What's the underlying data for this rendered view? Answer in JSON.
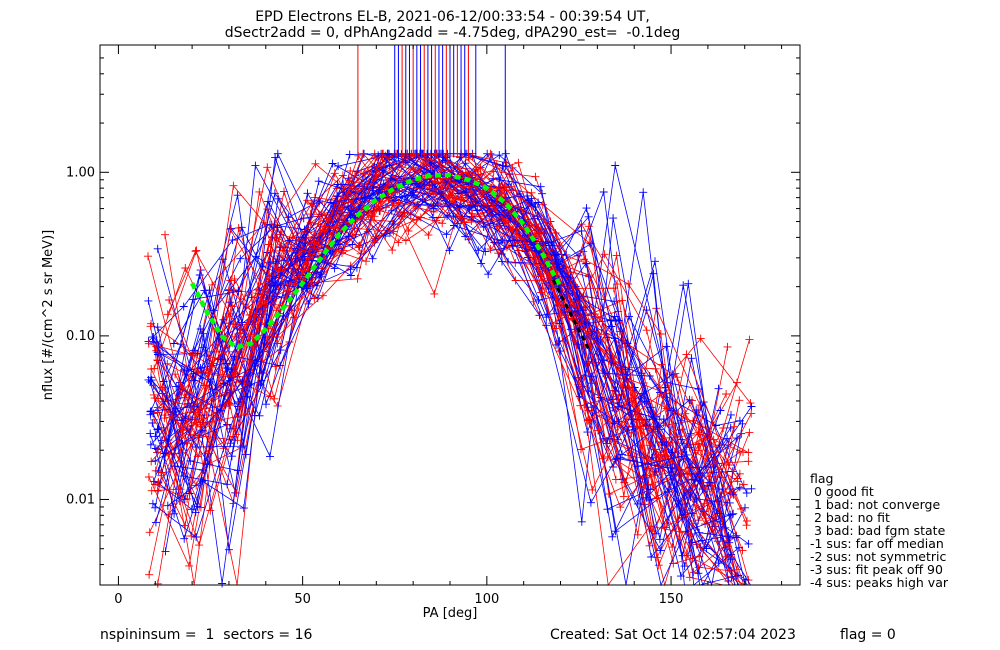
{
  "chart_data": {
    "type": "scatter",
    "title_line1": "EPD Electrons EL-B, 2021-06-12/00:33:54 - 00:39:54 UT,",
    "title_line2": "dSectr2add = 0, dPhAng2add = -4.75deg, dPA290_est=  -0.1deg",
    "xlabel": "PA [deg]",
    "ylabel": "nflux [#/(cm^2 s sr MeV)]",
    "xlim": [
      -5,
      185
    ],
    "ylim": [
      0.003,
      6.0
    ],
    "yscale": "log",
    "x_ticks": [
      0,
      50,
      100,
      150
    ],
    "y_ticks": [
      0.01,
      0.1,
      1.0
    ],
    "x_tick_labels": [
      "0",
      "50",
      "100",
      "150"
    ],
    "y_tick_labels": [
      "0.01",
      "0.10",
      "1.00"
    ],
    "colors": {
      "red": "#ff0000",
      "blue": "#0000ff",
      "fit": "#00ff00",
      "black": "#000000"
    },
    "bundle_envelope": {
      "description_free": true,
      "x": [
        10,
        20,
        30,
        40,
        50,
        60,
        70,
        80,
        85,
        90,
        100,
        110,
        120,
        128,
        140,
        150,
        160,
        168
      ],
      "y_center": [
        0.03,
        0.035,
        0.05,
        0.12,
        0.28,
        0.55,
        0.8,
        0.93,
        0.96,
        0.93,
        0.78,
        0.5,
        0.2,
        0.08,
        0.03,
        0.015,
        0.01,
        0.008
      ]
    },
    "fit_curve": {
      "x": [
        20,
        24,
        28,
        32,
        36,
        40,
        45,
        50,
        55,
        60,
        65,
        70,
        75,
        80,
        85,
        90,
        95,
        100,
        105,
        110,
        115,
        120
      ],
      "y": [
        0.21,
        0.14,
        0.1,
        0.085,
        0.09,
        0.11,
        0.15,
        0.21,
        0.3,
        0.42,
        0.55,
        0.68,
        0.8,
        0.9,
        0.96,
        0.96,
        0.9,
        0.8,
        0.65,
        0.48,
        0.32,
        0.2
      ]
    },
    "black_segment": {
      "x": [
        118,
        128
      ],
      "y": [
        0.22,
        0.08
      ]
    },
    "vertical_lines_x": [
      65,
      75,
      76,
      77,
      78,
      79,
      80,
      81,
      82,
      83,
      84,
      85,
      86,
      87,
      88,
      89,
      90,
      91,
      92,
      93,
      94,
      95,
      97,
      105
    ]
  },
  "legend": {
    "title": "flag",
    "items": [
      " 0 good fit",
      " 1 bad: not converge",
      " 2 bad: no fit",
      " 3 bad: bad fgm state",
      "-1 sus: far off median",
      "-2 sus: not symmetric",
      "-3 sus: fit peak off 90",
      "-4 sus: peaks high var"
    ]
  },
  "footer": {
    "left": "nspininsum =  1  sectors = 16",
    "middle": "Created: Sat Oct 14 02:57:04 2023",
    "right": "flag = 0"
  }
}
